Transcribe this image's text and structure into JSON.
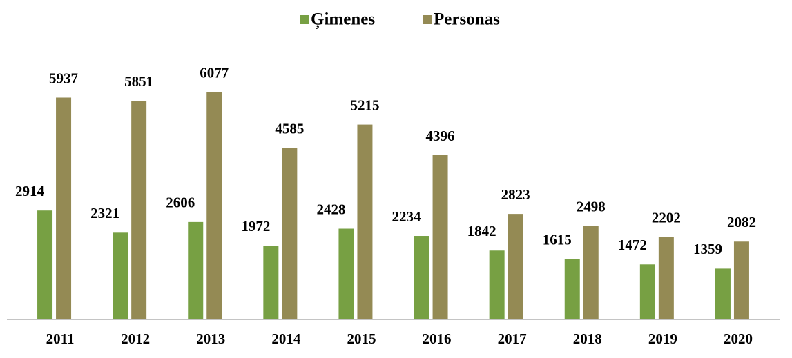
{
  "chart_data": {
    "type": "bar",
    "categories": [
      "2011",
      "2012",
      "2013",
      "2014",
      "2015",
      "2016",
      "2017",
      "2018",
      "2019",
      "2020"
    ],
    "series": [
      {
        "name": "Ģimenes",
        "color": "#77a043",
        "values": [
          2914,
          2321,
          2606,
          1972,
          2428,
          2234,
          1842,
          1615,
          1472,
          1359
        ]
      },
      {
        "name": "Personas",
        "color": "#948a54",
        "values": [
          5937,
          5851,
          6077,
          4585,
          5215,
          4396,
          2823,
          2498,
          2202,
          2082
        ]
      }
    ],
    "ylim": [
      0,
      6500
    ],
    "legend": "top"
  }
}
